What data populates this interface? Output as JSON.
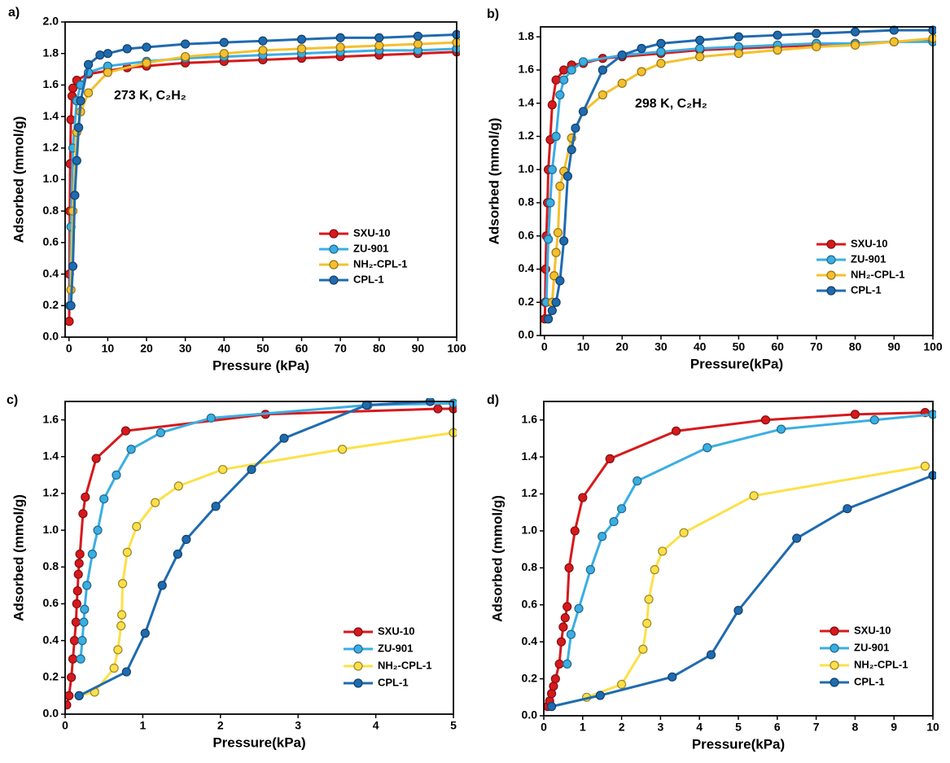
{
  "chart_data": [
    {
      "type": "line",
      "panel": "a)",
      "annotation": "273 K, C₂H₂",
      "xlabel": "Pressure (kPa)",
      "ylabel": "Adsorbed (mmol/g)",
      "legend": "lower right",
      "xlim": [
        -1,
        100
      ],
      "ylim": [
        0,
        2.0
      ],
      "xticks": [
        0,
        10,
        20,
        30,
        40,
        50,
        60,
        70,
        80,
        90,
        100
      ],
      "yticks": [
        {
          "value": 0,
          "label": "0.0"
        },
        {
          "value": 0.2,
          "label": "0.2"
        },
        {
          "value": 0.4,
          "label": "0.4"
        },
        {
          "value": 0.6,
          "label": "0.6"
        },
        {
          "value": 0.8,
          "label": "0.8"
        },
        {
          "value": 1.0,
          "label": "1.0"
        },
        {
          "value": 1.2,
          "label": "1.2"
        },
        {
          "value": 1.4,
          "label": "1.4"
        },
        {
          "value": 1.6,
          "label": "1.6"
        },
        {
          "value": 1.8,
          "label": "1.8"
        },
        {
          "value": 2.0,
          "label": "2.0"
        }
      ],
      "series": [
        {
          "name": "SXU-10",
          "color": "#d7191c",
          "x": [
            0.05,
            0.1,
            0.2,
            0.3,
            0.5,
            0.8,
            1,
            2,
            5,
            10,
            15,
            20,
            30,
            40,
            50,
            60,
            70,
            80,
            90,
            100
          ],
          "values": [
            0.1,
            0.4,
            0.8,
            1.1,
            1.38,
            1.53,
            1.58,
            1.63,
            1.67,
            1.69,
            1.71,
            1.72,
            1.74,
            1.75,
            1.76,
            1.77,
            1.78,
            1.79,
            1.8,
            1.81
          ]
        },
        {
          "name": "ZU-901",
          "color": "#3aaee3",
          "x": [
            0.2,
            0.5,
            1,
            2,
            3,
            5,
            10,
            20,
            30,
            40,
            50,
            60,
            70,
            80,
            90,
            100
          ],
          "values": [
            0.2,
            0.7,
            1.2,
            1.5,
            1.6,
            1.68,
            1.72,
            1.75,
            1.77,
            1.78,
            1.79,
            1.8,
            1.81,
            1.82,
            1.82,
            1.83
          ]
        },
        {
          "name": "NH₂-CPL-1",
          "color": "#f5c02c",
          "x": [
            0.5,
            1,
            2,
            3,
            5,
            10,
            20,
            30,
            40,
            50,
            60,
            70,
            80,
            90,
            100
          ],
          "values": [
            0.3,
            0.8,
            1.3,
            1.43,
            1.55,
            1.68,
            1.74,
            1.78,
            1.8,
            1.82,
            1.83,
            1.84,
            1.85,
            1.86,
            1.87
          ]
        },
        {
          "name": "CPL-1",
          "color": "#1f6bb0",
          "x": [
            0.5,
            1,
            1.5,
            2,
            2.5,
            3,
            5,
            8,
            10,
            15,
            20,
            30,
            40,
            50,
            60,
            70,
            80,
            90,
            100
          ],
          "values": [
            0.2,
            0.45,
            0.9,
            1.12,
            1.33,
            1.5,
            1.73,
            1.79,
            1.8,
            1.83,
            1.84,
            1.86,
            1.87,
            1.88,
            1.89,
            1.9,
            1.9,
            1.91,
            1.92
          ]
        }
      ]
    },
    {
      "type": "line",
      "panel": "b)",
      "annotation": "298 K, C₂H₂",
      "xlabel": "Pressure(kPa)",
      "ylabel": "Adsorbed (mmol/g)",
      "legend": "lower right",
      "xlim": [
        -1,
        100
      ],
      "ylim": [
        0,
        1.86
      ],
      "xticks": [
        0,
        10,
        20,
        30,
        40,
        50,
        60,
        70,
        80,
        90,
        100
      ],
      "yticks": [
        {
          "value": 0,
          "label": "0.0"
        },
        {
          "value": 0.2,
          "label": "0.2"
        },
        {
          "value": 0.4,
          "label": "0.4"
        },
        {
          "value": 0.6,
          "label": "0.6"
        },
        {
          "value": 0.8,
          "label": "0.8"
        },
        {
          "value": 1.0,
          "label": "1.0"
        },
        {
          "value": 1.2,
          "label": "1.2"
        },
        {
          "value": 1.4,
          "label": "1.4"
        },
        {
          "value": 1.6,
          "label": "1.6"
        },
        {
          "value": 1.8,
          "label": "1.8"
        }
      ],
      "series": [
        {
          "name": "SXU-10",
          "color": "#d7191c",
          "x": [
            0.1,
            0.2,
            0.3,
            0.5,
            0.8,
            1,
            1.5,
            2,
            3,
            5,
            7,
            10,
            15,
            20,
            30,
            40,
            50,
            60,
            70,
            80,
            90,
            100
          ],
          "values": [
            0.1,
            0.2,
            0.4,
            0.6,
            0.8,
            1.0,
            1.18,
            1.39,
            1.54,
            1.6,
            1.63,
            1.64,
            1.67,
            1.68,
            1.7,
            1.72,
            1.73,
            1.74,
            1.75,
            1.76,
            1.77,
            1.78
          ]
        },
        {
          "name": "ZU-901",
          "color": "#3aaee3",
          "x": [
            0.5,
            1,
            1.5,
            2,
            3,
            4,
            5,
            7,
            10,
            20,
            30,
            40,
            50,
            60,
            70,
            80,
            90,
            100
          ],
          "values": [
            0.2,
            0.58,
            0.8,
            1.0,
            1.2,
            1.45,
            1.54,
            1.6,
            1.65,
            1.69,
            1.71,
            1.73,
            1.74,
            1.75,
            1.76,
            1.76,
            1.77,
            1.77
          ]
        },
        {
          "name": "NH₂-CPL-1",
          "color": "#f5c02c",
          "x": [
            1,
            2,
            2.5,
            3,
            3.5,
            4,
            5,
            7,
            10,
            15,
            20,
            25,
            30,
            40,
            50,
            60,
            70,
            80,
            90,
            100
          ],
          "values": [
            0.1,
            0.2,
            0.36,
            0.5,
            0.62,
            0.9,
            0.99,
            1.19,
            1.35,
            1.45,
            1.52,
            1.59,
            1.64,
            1.68,
            1.7,
            1.72,
            1.74,
            1.75,
            1.77,
            1.79
          ]
        },
        {
          "name": "CPL-1",
          "color": "#1f6bb0",
          "x": [
            1,
            2,
            3,
            4,
            5,
            6,
            7,
            8,
            10,
            15,
            20,
            25,
            30,
            40,
            50,
            60,
            70,
            80,
            90,
            100
          ],
          "values": [
            0.1,
            0.15,
            0.2,
            0.33,
            0.57,
            0.96,
            1.12,
            1.25,
            1.35,
            1.6,
            1.69,
            1.73,
            1.76,
            1.78,
            1.8,
            1.81,
            1.82,
            1.83,
            1.84,
            1.84
          ]
        }
      ]
    },
    {
      "type": "line",
      "panel": "c)",
      "xlabel": "Pressure(kPa)",
      "ylabel": "Adsorbed (mmol/g)",
      "legend": "lower right",
      "xlim": [
        0,
        5
      ],
      "ylim": [
        0,
        1.7
      ],
      "xticks": [
        0,
        1,
        2,
        3,
        4,
        5
      ],
      "yticks": [
        {
          "value": 0,
          "label": "0.0"
        },
        {
          "value": 0.2,
          "label": "0.2"
        },
        {
          "value": 0.4,
          "label": "0.4"
        },
        {
          "value": 0.6,
          "label": "0.6"
        },
        {
          "value": 0.8,
          "label": "0.8"
        },
        {
          "value": 1.0,
          "label": "1.0"
        },
        {
          "value": 1.2,
          "label": "1.2"
        },
        {
          "value": 1.4,
          "label": "1.4"
        },
        {
          "value": 1.6,
          "label": "1.6"
        }
      ],
      "series": [
        {
          "name": "SXU-10",
          "color": "#d7191c",
          "x": [
            0.02,
            0.05,
            0.08,
            0.1,
            0.12,
            0.14,
            0.15,
            0.16,
            0.17,
            0.18,
            0.19,
            0.23,
            0.26,
            0.4,
            0.78,
            2.58,
            4.8,
            5
          ],
          "values": [
            0.05,
            0.1,
            0.2,
            0.3,
            0.4,
            0.5,
            0.6,
            0.67,
            0.76,
            0.82,
            0.87,
            1.09,
            1.18,
            1.39,
            1.54,
            1.63,
            1.66,
            1.66
          ]
        },
        {
          "name": "ZU-901",
          "color": "#3aaee3",
          "x": [
            0.2,
            0.22,
            0.24,
            0.25,
            0.28,
            0.35,
            0.42,
            0.5,
            0.66,
            0.85,
            1.23,
            1.88,
            3.9,
            5
          ],
          "values": [
            0.3,
            0.4,
            0.5,
            0.57,
            0.7,
            0.87,
            1.0,
            1.17,
            1.3,
            1.44,
            1.53,
            1.61,
            1.68,
            1.69
          ]
        },
        {
          "name": "NH₂-CPL-1",
          "color": "#fde047",
          "x": [
            0.18,
            0.38,
            0.63,
            0.68,
            0.72,
            0.73,
            0.74,
            0.8,
            0.92,
            1.16,
            1.46,
            2.03,
            3.57,
            5
          ],
          "values": [
            0.1,
            0.12,
            0.25,
            0.35,
            0.48,
            0.54,
            0.71,
            0.88,
            1.02,
            1.15,
            1.24,
            1.33,
            1.44,
            1.53
          ]
        },
        {
          "name": "CPL-1",
          "color": "#1f6bb0",
          "x": [
            0.18,
            0.79,
            1.03,
            1.25,
            1.45,
            1.56,
            1.94,
            2.4,
            2.82,
            3.88,
            4.7
          ],
          "values": [
            0.1,
            0.23,
            0.44,
            0.7,
            0.87,
            0.95,
            1.13,
            1.33,
            1.5,
            1.68,
            1.7
          ]
        }
      ]
    },
    {
      "type": "line",
      "panel": "d)",
      "xlabel": "Pressure(kPa)",
      "ylabel": "Adsorbed (mmol/g)",
      "legend": "lower right",
      "xlim": [
        0,
        10
      ],
      "ylim": [
        0,
        1.7
      ],
      "xticks": [
        0,
        1,
        2,
        3,
        4,
        5,
        6,
        7,
        8,
        9,
        10
      ],
      "yticks": [
        {
          "value": 0,
          "label": "0.0"
        },
        {
          "value": 0.2,
          "label": "0.2"
        },
        {
          "value": 0.4,
          "label": "0.4"
        },
        {
          "value": 0.6,
          "label": "0.6"
        },
        {
          "value": 0.8,
          "label": "0.8"
        },
        {
          "value": 1.0,
          "label": "1.0"
        },
        {
          "value": 1.2,
          "label": "1.2"
        },
        {
          "value": 1.4,
          "label": "1.4"
        },
        {
          "value": 1.6,
          "label": "1.6"
        }
      ],
      "series": [
        {
          "name": "SXU-10",
          "color": "#d7191c",
          "x": [
            0.1,
            0.15,
            0.2,
            0.25,
            0.3,
            0.4,
            0.45,
            0.5,
            0.55,
            0.6,
            0.65,
            0.8,
            1.0,
            1.7,
            3.4,
            5.7,
            8,
            9.8
          ],
          "values": [
            0.05,
            0.08,
            0.12,
            0.16,
            0.2,
            0.28,
            0.4,
            0.48,
            0.53,
            0.59,
            0.8,
            1.0,
            1.18,
            1.39,
            1.54,
            1.6,
            1.63,
            1.64
          ]
        },
        {
          "name": "ZU-901",
          "color": "#3aaee3",
          "x": [
            0.6,
            0.7,
            0.9,
            1.2,
            1.5,
            1.8,
            2.0,
            2.4,
            4.2,
            6.1,
            8.5,
            10
          ],
          "values": [
            0.28,
            0.44,
            0.58,
            0.79,
            0.97,
            1.05,
            1.12,
            1.27,
            1.45,
            1.55,
            1.6,
            1.63
          ]
        },
        {
          "name": "NH₂-CPL-1",
          "color": "#fde047",
          "x": [
            1.1,
            2.0,
            2.55,
            2.65,
            2.7,
            2.85,
            3.05,
            3.6,
            5.4,
            9.8
          ],
          "values": [
            0.1,
            0.17,
            0.36,
            0.5,
            0.63,
            0.79,
            0.89,
            0.99,
            1.19,
            1.35
          ]
        },
        {
          "name": "CPL-1",
          "color": "#1f6bb0",
          "x": [
            0.2,
            1.45,
            3.3,
            4.3,
            5,
            6.5,
            7.8,
            10
          ],
          "values": [
            0.05,
            0.11,
            0.21,
            0.33,
            0.57,
            0.96,
            1.12,
            1.3
          ]
        }
      ]
    }
  ]
}
